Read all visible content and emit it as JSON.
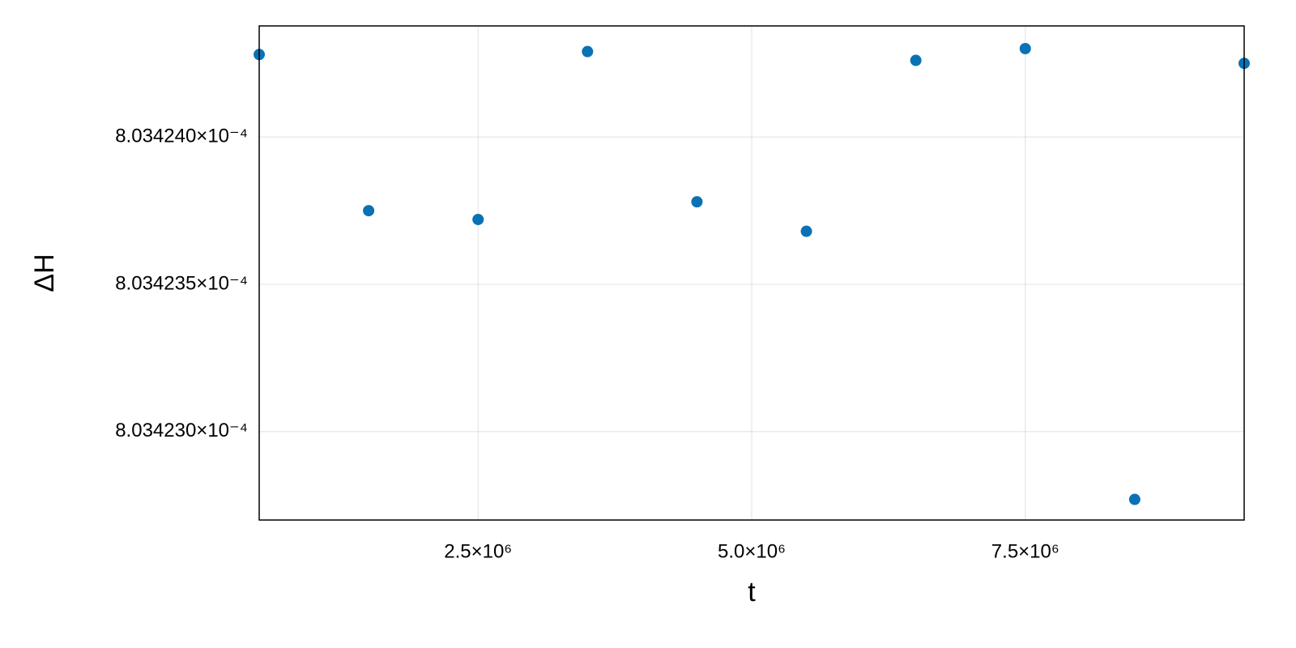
{
  "chart_data": {
    "type": "scatter",
    "x_label": "t",
    "y_label": "ΔH",
    "x": [
      500000,
      1500000,
      2500000,
      3500000,
      4500000,
      5500000,
      6500000,
      7500000,
      8500000,
      9500000
    ],
    "series": [
      {
        "color": "#0a72b4",
        "values": [
          0.00080342428,
          0.00080342375,
          0.00080342372,
          0.00080342429,
          0.00080342378,
          0.00080342368,
          0.00080342426,
          0.0008034243,
          0.00080342277,
          0.00080342425
        ]
      }
    ],
    "xlim": [
      500000,
      9500000
    ],
    "ylim": [
      0.0008034227,
      0.000803424377
    ],
    "xticks": [
      {
        "value": 2500000,
        "label": "2.5×10⁶"
      },
      {
        "value": 5000000,
        "label": "5.0×10⁶"
      },
      {
        "value": 7500000,
        "label": "7.5×10⁶"
      }
    ],
    "yticks": [
      {
        "value": 0.000803423,
        "label": "8.034230×10⁻⁴"
      },
      {
        "value": 0.0008034235,
        "label": "8.034235×10⁻⁴"
      },
      {
        "value": 0.000803424,
        "label": "8.034240×10⁻⁴"
      }
    ],
    "grid": true
  }
}
